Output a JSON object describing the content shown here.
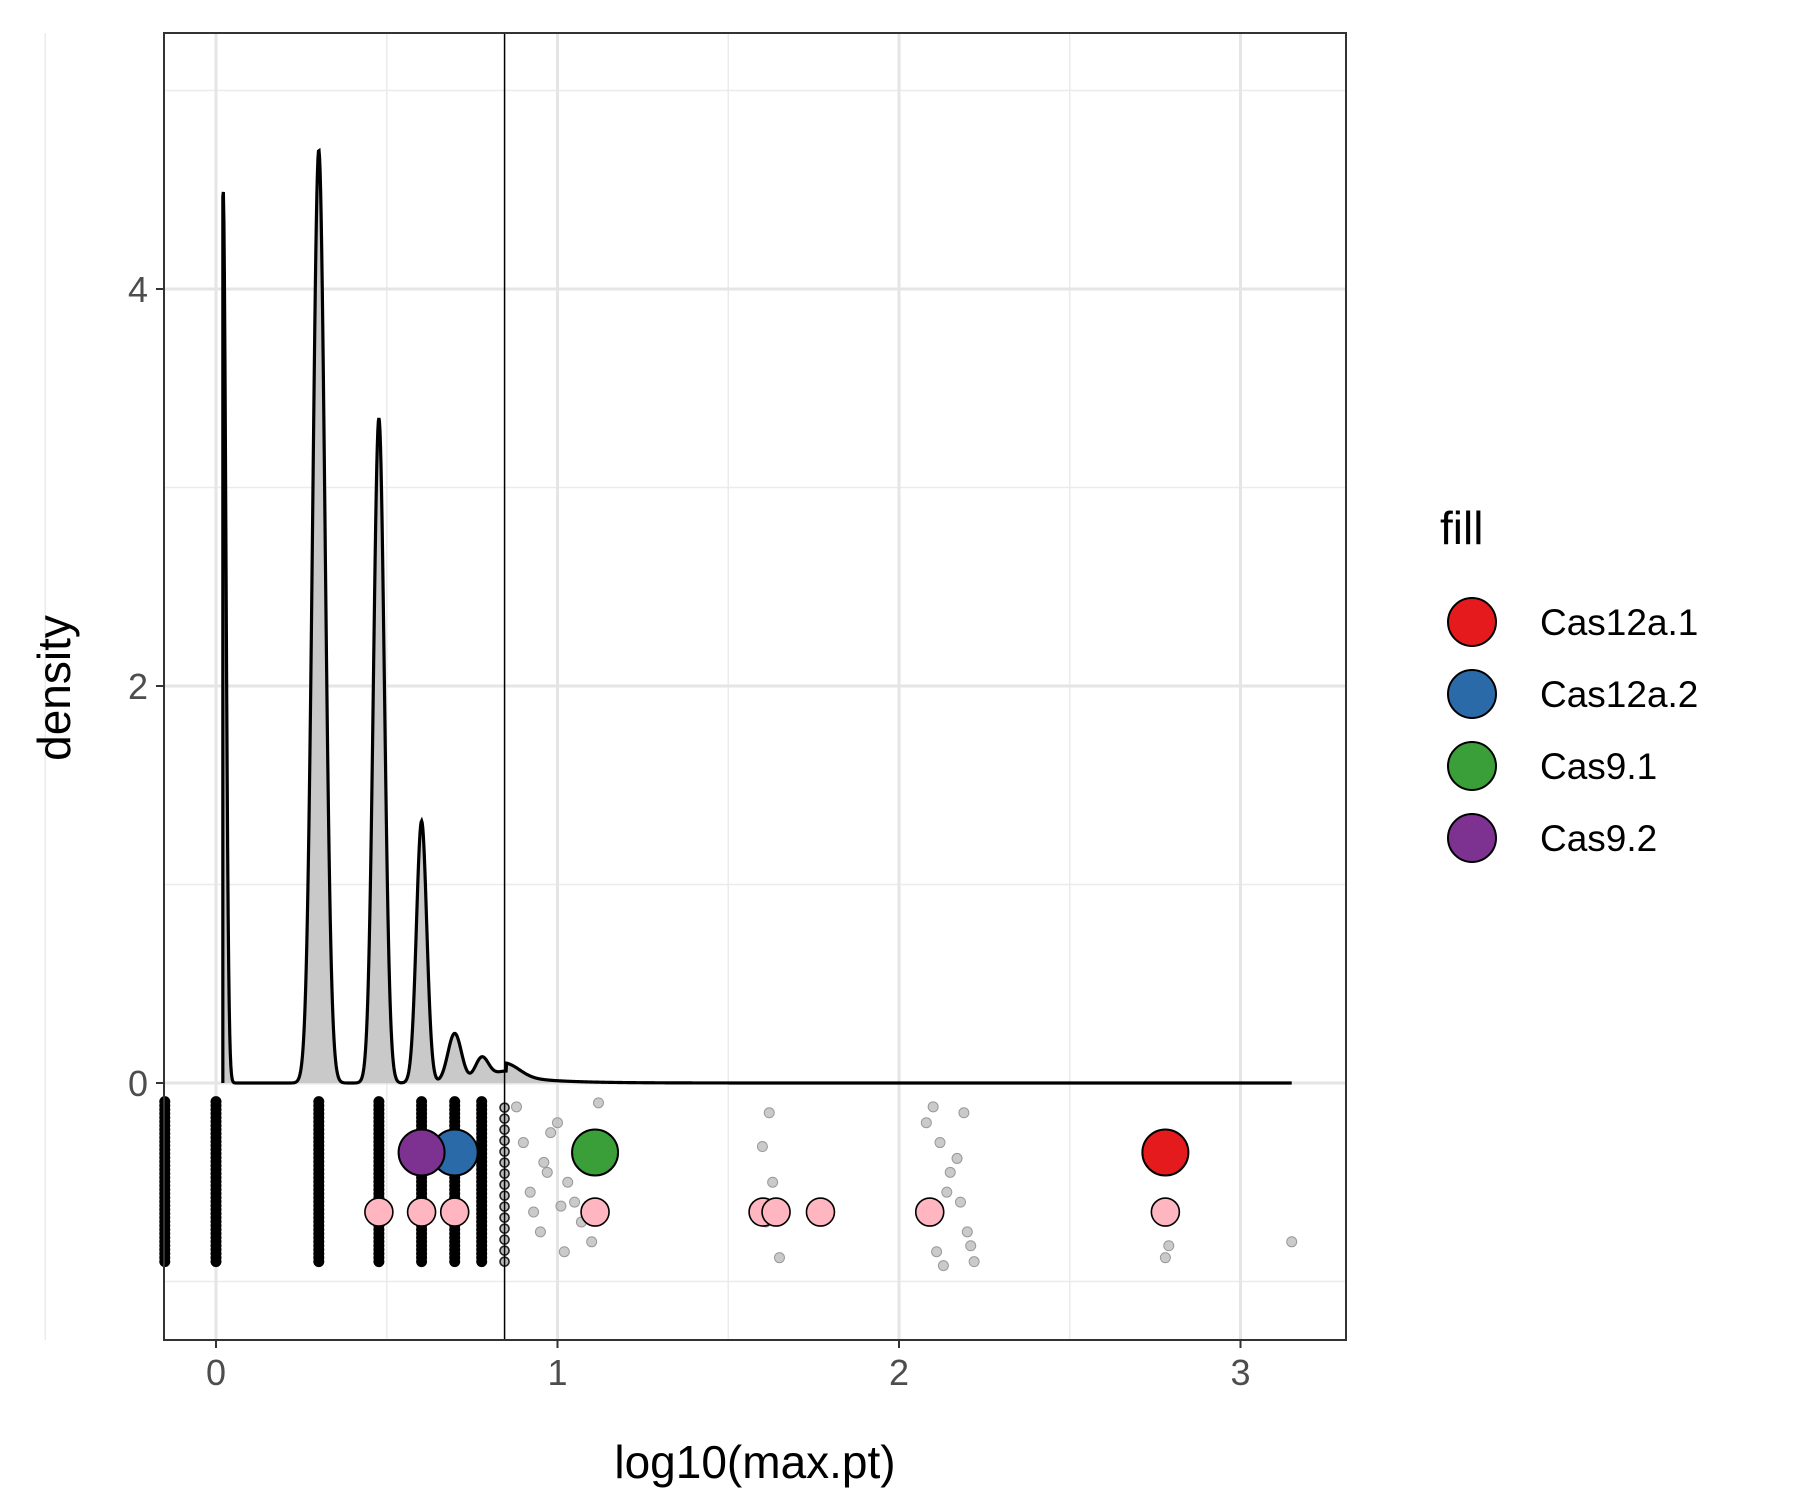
{
  "chart_data": {
    "type": "area",
    "title": "",
    "xlabel": "log10(max.pt)",
    "ylabel": "density",
    "xlim": [
      -0.15,
      3.3
    ],
    "ylim": [
      -1.3,
      5.3
    ],
    "x_ticks": [
      0,
      1,
      2,
      3
    ],
    "x_tick_labels": [
      "0",
      "1",
      "2",
      "3"
    ],
    "y_ticks": [
      0,
      2,
      4
    ],
    "y_tick_labels": [
      "0",
      "2",
      "4"
    ],
    "grid": true,
    "threshold_line": {
      "x": 0.845
    },
    "density_curve": {
      "fill": "#c9c9c9",
      "stroke": "#000000",
      "x_range": [
        0.02,
        3.15
      ],
      "peaks": [
        {
          "x": 0.021,
          "height": 4.5,
          "sd": 0.008
        },
        {
          "x": 0.301,
          "height": 4.7,
          "sd": 0.018
        },
        {
          "x": 0.477,
          "height": 3.35,
          "sd": 0.016
        },
        {
          "x": 0.602,
          "height": 1.32,
          "sd": 0.015
        },
        {
          "x": 0.699,
          "height": 0.25,
          "sd": 0.02
        },
        {
          "x": 0.778,
          "height": 0.12,
          "sd": 0.02
        },
        {
          "x": 0.85,
          "height": 0.06,
          "sd": 0.04
        }
      ]
    },
    "rug_columns_x": [
      -0.15,
      0.0,
      0.301,
      0.477,
      0.602,
      0.699,
      0.778,
      0.845
    ],
    "rug_y_range": [
      -0.9,
      -0.08
    ],
    "legend": {
      "title": "fill",
      "position": "right",
      "items": [
        {
          "label": "Cas12a.1",
          "color": "#e41a1c"
        },
        {
          "label": "Cas12a.2",
          "color": "#2b6aa9"
        },
        {
          "label": "Cas9.1",
          "color": "#3a9e39"
        },
        {
          "label": "Cas9.2",
          "color": "#7d3292"
        }
      ]
    },
    "highlight_points": [
      {
        "name": "Cas12a.1",
        "x": 2.78,
        "y": -0.35,
        "color": "#e41a1c"
      },
      {
        "name": "Cas12a.2",
        "x": 0.699,
        "y": -0.35,
        "color": "#2b6aa9"
      },
      {
        "name": "Cas9.1",
        "x": 1.11,
        "y": -0.35,
        "color": "#3a9e39"
      },
      {
        "name": "Cas9.2",
        "x": 0.602,
        "y": -0.35,
        "color": "#7d3292"
      }
    ],
    "pink_points": {
      "color": "#ffb6c1",
      "y": -0.65,
      "x": [
        0.477,
        0.602,
        0.699,
        1.11,
        1.602,
        1.64,
        1.77,
        2.09,
        2.78
      ]
    },
    "jitter_points": {
      "color": "#b3b3b3",
      "x": [
        0.88,
        0.9,
        0.92,
        0.95,
        0.97,
        1.0,
        1.02,
        1.05,
        1.08,
        1.1,
        1.12,
        1.62,
        1.6,
        1.63,
        1.65,
        2.1,
        2.12,
        2.15,
        2.18,
        2.2,
        2.22,
        2.08,
        2.14,
        2.17,
        2.21,
        2.79,
        2.78,
        3.15,
        1.03,
        0.93,
        0.98,
        1.07,
        2.11,
        2.19,
        1.61,
        0.96,
        1.01,
        2.13
      ],
      "y": [
        -0.12,
        -0.3,
        -0.55,
        -0.75,
        -0.45,
        -0.2,
        -0.85,
        -0.6,
        -0.35,
        -0.8,
        -0.1,
        -0.15,
        -0.32,
        -0.5,
        -0.88,
        -0.12,
        -0.3,
        -0.45,
        -0.6,
        -0.75,
        -0.9,
        -0.2,
        -0.55,
        -0.38,
        -0.82,
        -0.82,
        -0.88,
        -0.8,
        -0.5,
        -0.65,
        -0.25,
        -0.7,
        -0.85,
        -0.15,
        -0.7,
        -0.4,
        -0.62,
        -0.92
      ]
    }
  }
}
